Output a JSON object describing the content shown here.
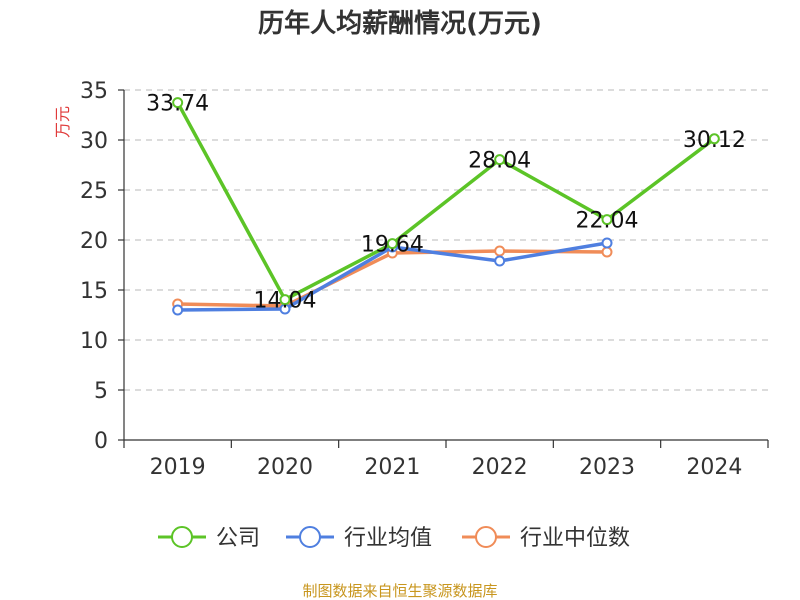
{
  "chart_data": {
    "type": "line",
    "title": "历年人均薪酬情况(万元)",
    "ylabel": "万元",
    "xlabel": "",
    "categories": [
      "2019",
      "2020",
      "2021",
      "2022",
      "2023",
      "2024"
    ],
    "ylim": [
      0,
      35
    ],
    "yticks": [
      0,
      5,
      10,
      15,
      20,
      25,
      30,
      35
    ],
    "grid": true,
    "legend_position": "bottom",
    "series": [
      {
        "name": "公司",
        "color": "#5cc427",
        "values": [
          33.74,
          14.04,
          19.64,
          28.04,
          22.04,
          30.12
        ],
        "labels": [
          "33.74",
          "14.04",
          "19.64",
          "28.04",
          "22.04",
          "30.12"
        ]
      },
      {
        "name": "行业均值",
        "color": "#4f7fe0",
        "values": [
          13.0,
          13.1,
          19.3,
          17.9,
          19.7,
          null
        ]
      },
      {
        "name": "行业中位数",
        "color": "#f08c58",
        "values": [
          13.6,
          13.4,
          18.7,
          18.9,
          18.8,
          null
        ]
      }
    ]
  },
  "source_text": "制图数据来自恒生聚源数据库"
}
